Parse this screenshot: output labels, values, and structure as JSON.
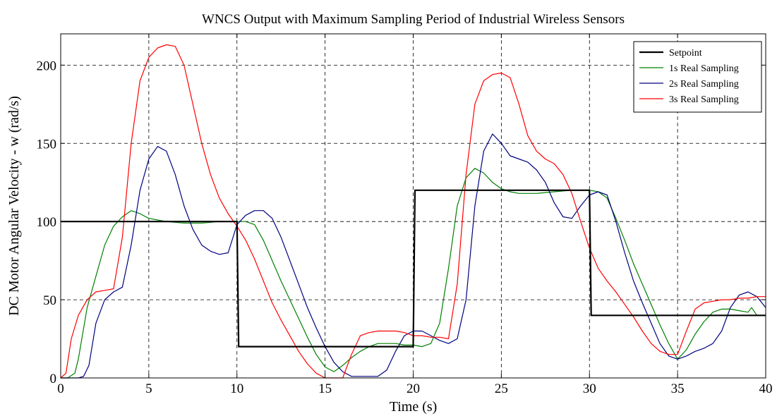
{
  "chart_data": {
    "type": "line",
    "title": "WNCS Output with Maximum Sampling Period of Industrial Wireless Sensors",
    "xlabel": "Time (s)",
    "ylabel": "DC Motor Angular Velocity - w (rad/s)",
    "xlim": [
      0,
      40
    ],
    "ylim": [
      0,
      220
    ],
    "xticks": [
      0,
      5,
      10,
      15,
      20,
      25,
      30,
      35,
      40
    ],
    "yticks": [
      0,
      50,
      100,
      150,
      200
    ],
    "grid": true,
    "legend_position": "top-right",
    "series": [
      {
        "name": "Setpoint",
        "color": "#000000",
        "x": [
          0,
          10,
          10.1,
          20,
          20.1,
          30,
          30.1,
          40
        ],
        "y": [
          100,
          100,
          20,
          20,
          120,
          120,
          40,
          40
        ]
      },
      {
        "name": "1s Real Sampling",
        "color": "#008000",
        "x": [
          0,
          0.4,
          0.8,
          1.0,
          1.5,
          2.0,
          2.5,
          3.0,
          3.5,
          4.0,
          4.5,
          5.0,
          5.5,
          6.0,
          7.0,
          8.0,
          9.0,
          10.0,
          10.5,
          11.0,
          11.5,
          12.0,
          12.5,
          13.0,
          13.5,
          14.0,
          14.5,
          15.0,
          15.5,
          16.0,
          16.5,
          17.0,
          17.5,
          18.0,
          18.5,
          19.0,
          19.5,
          20.0,
          20.5,
          21.0,
          21.5,
          22.0,
          22.5,
          23.0,
          23.5,
          24.0,
          24.5,
          25.0,
          25.5,
          26.0,
          27.0,
          28.0,
          29.0,
          30.0,
          30.5,
          31.0,
          31.5,
          32.0,
          32.5,
          33.0,
          33.5,
          34.0,
          34.5,
          35.0,
          35.5,
          36.0,
          36.5,
          37.0,
          37.5,
          38.0,
          38.5,
          39.0,
          39.2,
          39.5,
          40.0
        ],
        "y": [
          0,
          0,
          3,
          12,
          45,
          65,
          85,
          97,
          103,
          107,
          105,
          102,
          101,
          100,
          99,
          99,
          100,
          100,
          100,
          98,
          88,
          75,
          62,
          50,
          38,
          26,
          15,
          7,
          4,
          8,
          13,
          17,
          20,
          22,
          22,
          22,
          21,
          21,
          20,
          22,
          35,
          70,
          110,
          128,
          134,
          131,
          125,
          121,
          119,
          118,
          118,
          119,
          120,
          120,
          119,
          115,
          102,
          88,
          73,
          60,
          47,
          34,
          22,
          12,
          18,
          28,
          36,
          42,
          44,
          44,
          43,
          42,
          45,
          40,
          40
        ]
      },
      {
        "name": "2s Real Sampling",
        "color": "#00007f",
        "x": [
          0,
          1.0,
          1.3,
          1.6,
          2.0,
          2.5,
          3.0,
          3.5,
          4.0,
          4.5,
          5.0,
          5.5,
          6.0,
          6.5,
          7.0,
          7.5,
          8.0,
          8.5,
          9.0,
          9.5,
          10.0,
          10.5,
          11.0,
          11.5,
          12.0,
          12.5,
          13.0,
          13.5,
          14.0,
          14.5,
          15.0,
          15.5,
          16.0,
          16.5,
          17.0,
          17.5,
          18.0,
          18.5,
          19.0,
          19.5,
          20.0,
          20.5,
          21.0,
          21.5,
          22.0,
          22.5,
          23.0,
          23.5,
          24.0,
          24.5,
          25.0,
          25.5,
          26.0,
          26.5,
          27.0,
          27.5,
          28.0,
          28.5,
          29.0,
          29.5,
          30.0,
          30.5,
          31.0,
          31.5,
          32.0,
          32.5,
          33.0,
          33.5,
          34.0,
          34.5,
          35.0,
          35.5,
          36.0,
          36.5,
          37.0,
          37.5,
          38.0,
          38.5,
          39.0,
          39.5,
          40.0
        ],
        "y": [
          0,
          0,
          1,
          8,
          35,
          50,
          55,
          58,
          85,
          120,
          140,
          148,
          145,
          130,
          110,
          95,
          85,
          81,
          79,
          80,
          98,
          104,
          107,
          107,
          102,
          90,
          75,
          60,
          45,
          32,
          20,
          10,
          4,
          1,
          1,
          1,
          1,
          5,
          17,
          27,
          30,
          30,
          27,
          24,
          22,
          25,
          50,
          110,
          145,
          156,
          150,
          142,
          140,
          138,
          133,
          125,
          112,
          103,
          102,
          110,
          117,
          119,
          117,
          100,
          80,
          62,
          48,
          35,
          22,
          14,
          12,
          14,
          17,
          19,
          22,
          30,
          45,
          53,
          55,
          52,
          45
        ]
      },
      {
        "name": "3s Real Sampling",
        "color": "#ff0000",
        "x": [
          0,
          0.3,
          0.6,
          1.0,
          1.5,
          2.0,
          2.5,
          3.0,
          3.5,
          4.0,
          4.5,
          5.0,
          5.5,
          6.0,
          6.5,
          7.0,
          7.5,
          8.0,
          8.5,
          9.0,
          9.5,
          10.0,
          10.5,
          11.0,
          11.5,
          12.0,
          12.5,
          13.0,
          13.5,
          14.0,
          14.5,
          15.0,
          15.5,
          16.0,
          16.5,
          17.0,
          17.5,
          18.0,
          18.5,
          19.0,
          19.5,
          20.0,
          20.5,
          21.0,
          21.5,
          22.0,
          22.5,
          23.0,
          23.5,
          24.0,
          24.5,
          25.0,
          25.5,
          26.0,
          26.5,
          27.0,
          27.5,
          28.0,
          28.5,
          29.0,
          29.5,
          30.0,
          30.5,
          31.0,
          31.5,
          32.0,
          32.5,
          33.0,
          33.5,
          34.0,
          34.5,
          35.0,
          35.5,
          36.0,
          36.5,
          37.0,
          37.5,
          38.0,
          38.5,
          39.0,
          39.5,
          40.0
        ],
        "y": [
          0,
          3,
          25,
          40,
          50,
          55,
          56,
          57,
          90,
          150,
          190,
          205,
          211,
          213,
          212,
          200,
          175,
          150,
          130,
          115,
          105,
          97,
          88,
          76,
          62,
          48,
          37,
          27,
          17,
          9,
          3,
          0,
          0,
          0,
          15,
          27,
          29,
          30,
          30,
          30,
          29,
          27,
          27,
          26,
          26,
          25,
          60,
          130,
          175,
          190,
          194,
          195,
          192,
          175,
          155,
          145,
          140,
          137,
          130,
          118,
          100,
          83,
          70,
          62,
          55,
          47,
          39,
          30,
          22,
          17,
          15,
          15,
          30,
          44,
          48,
          49,
          50,
          50,
          51,
          51,
          52,
          52
        ]
      }
    ]
  }
}
